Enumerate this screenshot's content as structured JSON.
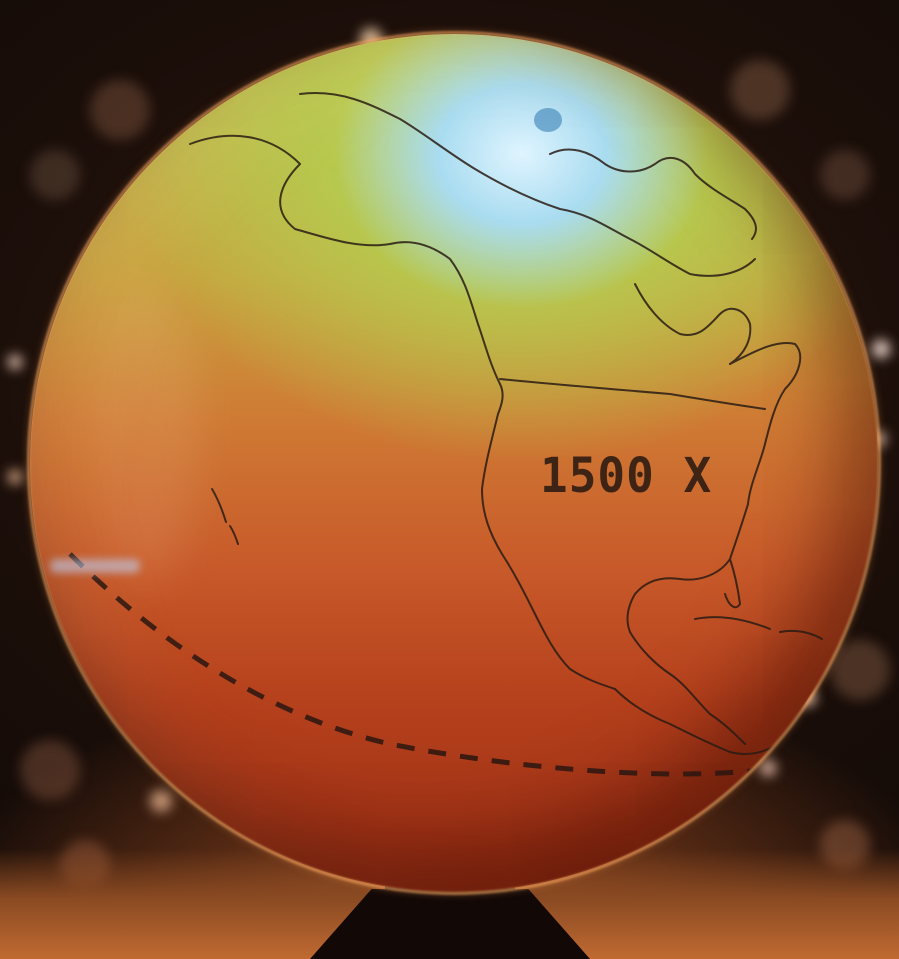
{
  "overlay_label": "1500 X",
  "colors": {
    "arctic": "#dff4ff",
    "north": "#c6d96a",
    "equator": "#b5401c",
    "background": "#140b08"
  },
  "icons": [
    "globe-icon"
  ]
}
